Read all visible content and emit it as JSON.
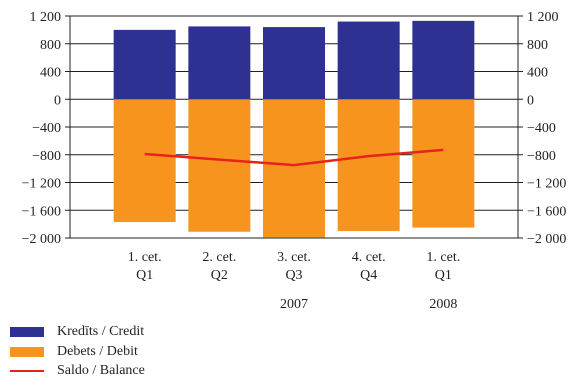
{
  "chart_data": {
    "type": "bar",
    "stacked": true,
    "categories": [
      "1. cet. Q1",
      "2. cet. Q2",
      "3. cet. Q3",
      "4. cet. Q4",
      "1. cet. Q1"
    ],
    "category_lines": [
      [
        "1. cet.",
        "Q1"
      ],
      [
        "2. cet.",
        "Q2"
      ],
      [
        "3. cet.",
        "Q3"
      ],
      [
        "4. cet.",
        "Q4"
      ],
      [
        "1. cet.",
        "Q1"
      ]
    ],
    "year_groups": [
      {
        "label": "2007",
        "center_category": 2
      },
      {
        "label": "2008",
        "center_category": 4
      }
    ],
    "series": [
      {
        "name": "Kredīts / Credit",
        "type": "bar",
        "color": "#2e3192",
        "values": [
          1000,
          1050,
          1040,
          1120,
          1130
        ]
      },
      {
        "name": "Debets / Debit",
        "type": "bar",
        "color": "#f7941d",
        "values": [
          -1770,
          -1910,
          -1990,
          -1900,
          -1850
        ]
      },
      {
        "name": "Saldo / Balance",
        "type": "line",
        "color": "#e8231f",
        "values": [
          -790,
          -870,
          -950,
          -820,
          -730
        ]
      }
    ],
    "ylim": [
      -2000,
      1200
    ],
    "yticks": [
      1200,
      800,
      400,
      0,
      -400,
      -800,
      -1200,
      -1600,
      -2000
    ],
    "ytick_labels": [
      "1 200",
      "800",
      "400",
      "0",
      "−400",
      "−800",
      "−1 200",
      "−1 600",
      "−2 000"
    ],
    "grid": true,
    "legend_position": "bottom-left",
    "title": "",
    "xlabel": "",
    "ylabel": ""
  }
}
